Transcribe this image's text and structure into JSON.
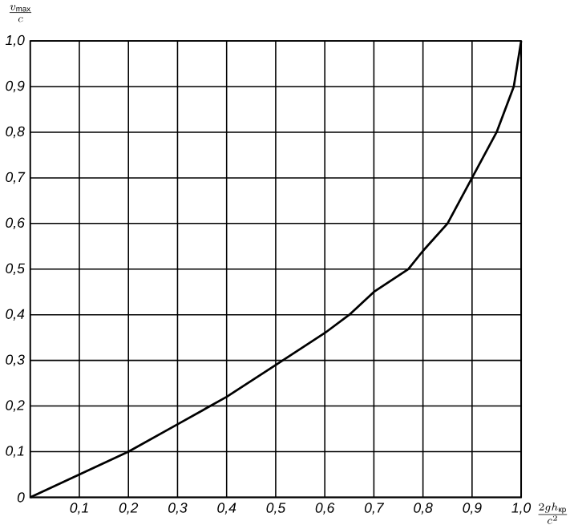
{
  "chart_data": {
    "type": "line",
    "xlabel": "\\frac{2gh_{\\text{кр}}}{c^{2}}",
    "ylabel": "\\frac{v_{\\mathrm{max}}}{c}",
    "x": [
      0,
      0.1,
      0.2,
      0.3,
      0.4,
      0.5,
      0.6,
      0.65,
      0.7,
      0.77,
      0.8,
      0.85,
      0.9,
      0.95,
      0.985,
      1.0
    ],
    "series": [
      {
        "color": "#000000",
        "values": [
          0,
          0.05,
          0.1,
          0.16,
          0.22,
          0.29,
          0.36,
          0.4,
          0.45,
          0.5,
          0.54,
          0.6,
          0.7,
          0.8,
          0.9,
          1.0
        ]
      }
    ],
    "xlim": [
      0,
      1.0
    ],
    "ylim": [
      0,
      1.0
    ],
    "xticks": [
      {
        "value": 0.1,
        "label": "0,1"
      },
      {
        "value": 0.2,
        "label": "0,2"
      },
      {
        "value": 0.3,
        "label": "0,3"
      },
      {
        "value": 0.4,
        "label": "0,4"
      },
      {
        "value": 0.5,
        "label": "0,5"
      },
      {
        "value": 0.6,
        "label": "0,6"
      },
      {
        "value": 0.7,
        "label": "0,7"
      },
      {
        "value": 0.8,
        "label": "0,8"
      },
      {
        "value": 0.9,
        "label": "0,9"
      },
      {
        "value": 1.0,
        "label": "1,0"
      }
    ],
    "yticks": [
      0,
      {
        "value": 0.1,
        "label": "0,1"
      },
      {
        "value": 0.2,
        "label": "0,2"
      },
      {
        "value": 0.3,
        "label": "0,3"
      },
      {
        "value": 0.4,
        "label": "0,4"
      },
      {
        "value": 0.5,
        "label": "0,5"
      },
      {
        "value": 0.6,
        "label": "0,6"
      },
      {
        "value": 0.7,
        "label": "0,7"
      },
      {
        "value": 0.8,
        "label": "0,8"
      },
      {
        "value": 0.9,
        "label": "0,9"
      },
      {
        "value": 1.0,
        "label": "1,0"
      }
    ],
    "grid": true,
    "marker": "none",
    "line_style": "solid"
  }
}
